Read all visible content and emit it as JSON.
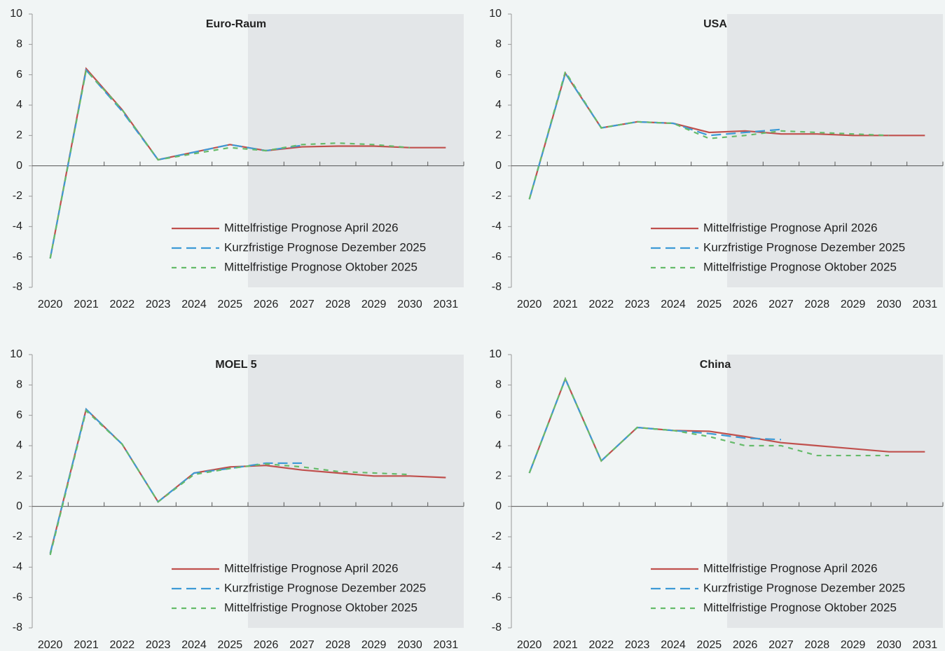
{
  "chart_data": [
    {
      "type": "line",
      "title": "Euro-Raum",
      "categories": [
        "2020",
        "2021",
        "2022",
        "2023",
        "2024",
        "2025",
        "2026",
        "2027",
        "2028",
        "2029",
        "2030",
        "2031"
      ],
      "series": [
        {
          "name": "Mittelfristige Prognose April 2026",
          "color": "#c0504d",
          "dash": "solid",
          "values": [
            -6.1,
            6.4,
            3.7,
            0.4,
            0.9,
            1.4,
            1.0,
            1.25,
            1.3,
            1.3,
            1.2,
            1.2
          ]
        },
        {
          "name": "Kurzfristige Prognose Dezember 2025",
          "color": "#3d9ad6",
          "dash": "long",
          "values": [
            -6.1,
            6.3,
            3.6,
            0.4,
            0.9,
            1.4,
            1.0,
            1.35,
            null,
            null,
            null,
            null
          ]
        },
        {
          "name": "Mittelfristige Prognose Oktober 2025",
          "color": "#66bb6a",
          "dash": "short",
          "values": [
            -6.1,
            6.3,
            3.7,
            0.4,
            0.8,
            1.2,
            1.0,
            1.4,
            1.5,
            1.4,
            1.2,
            null
          ]
        }
      ],
      "ylim": [
        -8,
        10
      ],
      "yticks": [
        -8,
        -6,
        -4,
        -2,
        0,
        2,
        4,
        6,
        8,
        10
      ],
      "shade_start": "2026"
    },
    {
      "type": "line",
      "title": "USA",
      "categories": [
        "2020",
        "2021",
        "2022",
        "2023",
        "2024",
        "2025",
        "2026",
        "2027",
        "2028",
        "2029",
        "2030",
        "2031"
      ],
      "series": [
        {
          "name": "Mittelfristige Prognose April 2026",
          "color": "#c0504d",
          "dash": "solid",
          "values": [
            -2.2,
            6.1,
            2.5,
            2.9,
            2.8,
            2.2,
            2.3,
            2.1,
            2.1,
            2.0,
            2.0,
            2.0
          ]
        },
        {
          "name": "Kurzfristige Prognose Dezember 2025",
          "color": "#3d9ad6",
          "dash": "long",
          "values": [
            -2.2,
            6.1,
            2.5,
            2.9,
            2.8,
            2.0,
            2.2,
            2.4,
            null,
            null,
            null,
            null
          ]
        },
        {
          "name": "Mittelfristige Prognose Oktober 2025",
          "color": "#66bb6a",
          "dash": "short",
          "values": [
            -2.2,
            6.2,
            2.5,
            2.9,
            2.8,
            1.8,
            2.0,
            2.3,
            2.2,
            2.1,
            2.0,
            null
          ]
        }
      ],
      "ylim": [
        -8,
        10
      ],
      "yticks": [
        -8,
        -6,
        -4,
        -2,
        0,
        2,
        4,
        6,
        8,
        10
      ],
      "shade_start": "2026"
    },
    {
      "type": "line",
      "title": "MOEL 5",
      "categories": [
        "2020",
        "2021",
        "2022",
        "2023",
        "2024",
        "2025",
        "2026",
        "2027",
        "2028",
        "2029",
        "2030",
        "2031"
      ],
      "series": [
        {
          "name": "Mittelfristige Prognose April 2026",
          "color": "#c0504d",
          "dash": "solid",
          "values": [
            -3.1,
            6.4,
            4.1,
            0.3,
            2.2,
            2.6,
            2.7,
            2.4,
            2.2,
            2.0,
            2.0,
            1.9
          ]
        },
        {
          "name": "Kurzfristige Prognose Dezember 2025",
          "color": "#3d9ad6",
          "dash": "long",
          "values": [
            -3.1,
            6.4,
            4.1,
            0.3,
            2.2,
            2.5,
            2.85,
            2.85,
            null,
            null,
            null,
            null
          ]
        },
        {
          "name": "Mittelfristige Prognose Oktober 2025",
          "color": "#66bb6a",
          "dash": "short",
          "values": [
            -3.2,
            6.3,
            4.1,
            0.3,
            2.1,
            2.5,
            2.8,
            2.6,
            2.3,
            2.2,
            2.1,
            null
          ]
        }
      ],
      "ylim": [
        -8,
        10
      ],
      "yticks": [
        -8,
        -6,
        -4,
        -2,
        0,
        2,
        4,
        6,
        8,
        10
      ],
      "shade_start": "2026"
    },
    {
      "type": "line",
      "title": "China",
      "categories": [
        "2020",
        "2021",
        "2022",
        "2023",
        "2024",
        "2025",
        "2026",
        "2027",
        "2028",
        "2029",
        "2030",
        "2031"
      ],
      "series": [
        {
          "name": "Mittelfristige Prognose April 2026",
          "color": "#c0504d",
          "dash": "solid",
          "values": [
            2.2,
            8.4,
            3.0,
            5.2,
            5.0,
            4.95,
            4.6,
            4.2,
            4.0,
            3.8,
            3.6,
            3.6
          ]
        },
        {
          "name": "Kurzfristige Prognose Dezember 2025",
          "color": "#3d9ad6",
          "dash": "long",
          "values": [
            2.2,
            8.4,
            3.0,
            5.2,
            5.0,
            4.8,
            4.5,
            4.4,
            null,
            null,
            null,
            null
          ]
        },
        {
          "name": "Mittelfristige Prognose Oktober 2025",
          "color": "#66bb6a",
          "dash": "short",
          "values": [
            2.2,
            8.4,
            3.0,
            5.2,
            5.0,
            4.6,
            4.0,
            4.0,
            3.35,
            3.35,
            3.35,
            null
          ]
        }
      ],
      "ylim": [
        -8,
        10
      ],
      "yticks": [
        -8,
        -6,
        -4,
        -2,
        0,
        2,
        4,
        6,
        8,
        10
      ],
      "shade_start": "2026"
    }
  ]
}
